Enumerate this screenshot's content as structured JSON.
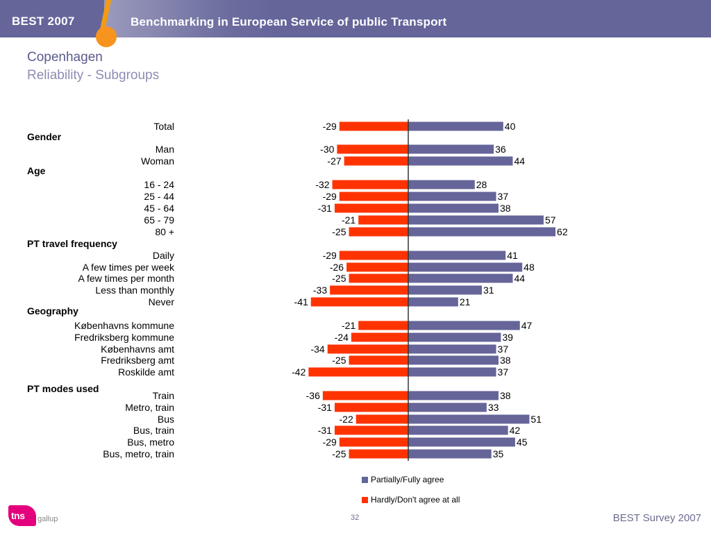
{
  "header": {
    "brand": "BEST 2007",
    "tagline": "Benchmarking in European Service of public Transport"
  },
  "title": "Copenhagen",
  "subtitle": "Reliability - Subgroups",
  "groups": {
    "gender": "Gender",
    "age": "Age",
    "pt_frequency": "PT travel frequency",
    "geography": "Geography",
    "pt_modes": "PT modes used"
  },
  "colors": {
    "agree": "#65659a",
    "disagree": "#ff3300",
    "axis": "#333333"
  },
  "legend": {
    "agree": "Partially/Fully agree",
    "disagree": "Hardly/Don't agree at all"
  },
  "chart_data": {
    "type": "bar",
    "orientation": "horizontal-diverging",
    "categories": [
      "Total",
      "Man",
      "Woman",
      "16 - 24",
      "25 - 44",
      "45 - 64",
      "65 - 79",
      "80 +",
      "Daily",
      "A few times per week",
      "A few times per month",
      "Less than monthly",
      "Never",
      "Københavns kommune",
      "Fredriksberg kommune",
      "Københavns amt",
      "Fredriksberg amt",
      "Roskilde amt",
      "Train",
      "Metro, train",
      "Bus",
      "Bus, train",
      "Bus, metro",
      "Bus, metro, train"
    ],
    "series": [
      {
        "name": "Hardly/Don't agree at all",
        "values": [
          -29,
          -30,
          -27,
          -32,
          -29,
          -31,
          -21,
          -25,
          -29,
          -26,
          -25,
          -33,
          -41,
          -21,
          -24,
          -34,
          -25,
          -42,
          -36,
          -31,
          -22,
          -31,
          -29,
          -25
        ]
      },
      {
        "name": "Partially/Fully agree",
        "values": [
          40,
          36,
          44,
          28,
          37,
          38,
          57,
          62,
          41,
          48,
          44,
          31,
          21,
          47,
          39,
          37,
          38,
          37,
          38,
          33,
          51,
          42,
          45,
          35
        ]
      }
    ],
    "xlim": [
      -42,
      62
    ],
    "legend_position": "bottom-right"
  },
  "footer": {
    "page": "32",
    "right": "BEST Survey 2007",
    "logo": "tns",
    "logo_sub": "gallup"
  }
}
